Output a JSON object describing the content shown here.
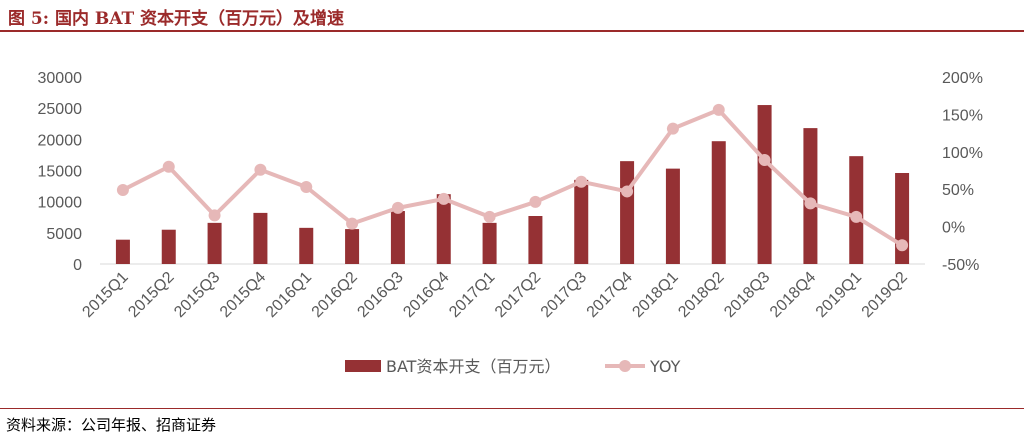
{
  "title": "图 5:  国内 BAT 资本开支（百万元）及增速",
  "source": "资料来源：公司年报、招商证券",
  "chart_data": {
    "type": "bar",
    "categories": [
      "2015Q1",
      "2015Q2",
      "2015Q3",
      "2015Q4",
      "2016Q1",
      "2016Q2",
      "2016Q3",
      "2016Q4",
      "2017Q1",
      "2017Q2",
      "2017Q3",
      "2017Q4",
      "2018Q1",
      "2018Q2",
      "2018Q3",
      "2018Q4",
      "2019Q1",
      "2019Q2"
    ],
    "series": [
      {
        "name": "BAT资本开支（百万元）",
        "type": "bar",
        "axis": "left",
        "color": "#953134",
        "values": [
          3900,
          5500,
          6600,
          8200,
          5800,
          5600,
          8500,
          11200,
          6600,
          7700,
          13500,
          16500,
          15300,
          19700,
          25500,
          21800,
          17300,
          14600
        ]
      },
      {
        "name": "YOY",
        "type": "line",
        "axis": "right",
        "color": "#e6b8b8",
        "values": [
          49,
          80,
          15,
          76,
          53,
          4,
          25,
          37,
          13,
          33,
          60,
          47,
          131,
          156,
          89,
          31,
          13,
          -25
        ]
      }
    ],
    "ylim_left": [
      0,
      30000
    ],
    "yticks_left": [
      "0",
      "5000",
      "10000",
      "15000",
      "20000",
      "25000",
      "30000"
    ],
    "ylim_right": [
      -50,
      200
    ],
    "yticks_right": [
      "-50%",
      "0%",
      "50%",
      "100%",
      "150%",
      "200%"
    ],
    "legend": "bottom",
    "grid": false
  }
}
